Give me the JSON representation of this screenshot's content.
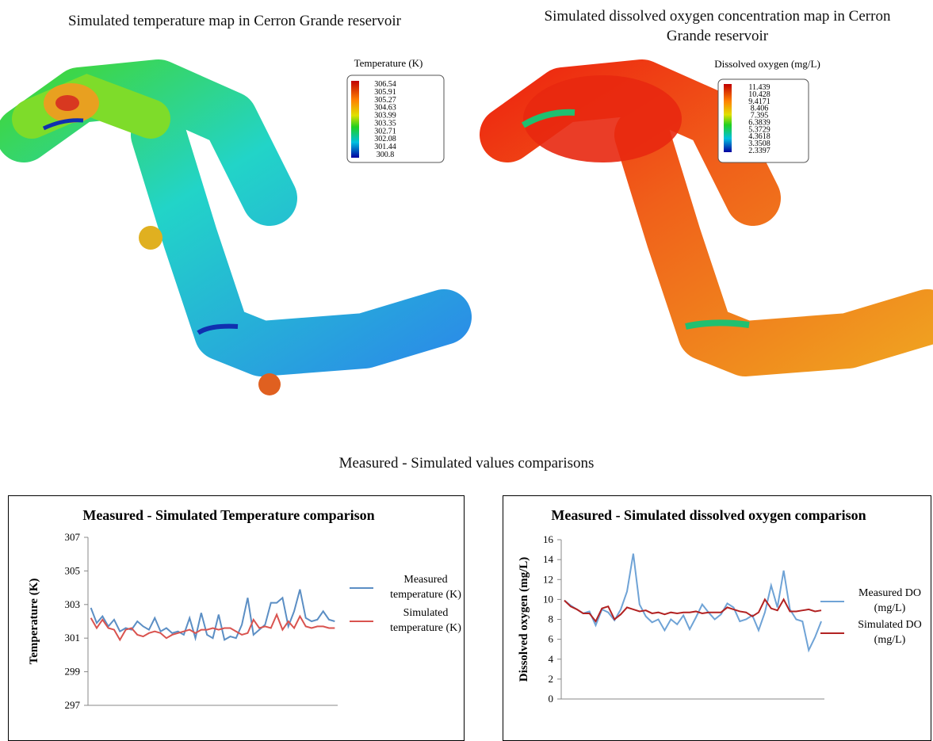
{
  "figure": {
    "temperature_map_title": "Simulated temperature map in Cerron Grande reservoir",
    "oxygen_map_title": "Simulated dissolved oxygen concentration map in Cerron Grande reservoir",
    "comparison_title": "Measured - Simulated values comparisons"
  },
  "maps": [
    {
      "legend_title": "Temperature (K)",
      "scale_labels": [
        306.54,
        305.91,
        305.27,
        304.63,
        303.99,
        303.35,
        302.71,
        302.08,
        301.44,
        300.8
      ]
    },
    {
      "legend_title": "Dissolved oxygen (mg/L)",
      "scale_labels": [
        11.439,
        10.428,
        9.4171,
        8.406,
        7.395,
        6.3839,
        5.3729,
        4.3618,
        3.3508,
        2.3397
      ]
    }
  ],
  "chart_data": [
    {
      "type": "line",
      "title": "Measured - Simulated Temperature comparison",
      "y_label": "Temperature (K)",
      "categories": [
        null,
        null,
        null,
        null,
        null,
        null,
        null,
        null,
        null,
        null,
        null,
        null,
        null,
        null,
        null,
        null,
        null,
        null,
        null,
        null,
        null,
        null,
        null,
        null,
        null,
        null,
        null,
        null,
        null,
        null,
        null,
        null,
        null,
        null,
        null,
        null,
        null,
        null,
        null,
        null,
        null,
        null,
        null
      ],
      "ylim": [
        297,
        307
      ],
      "yticks": [
        297,
        299,
        301,
        303,
        305,
        307
      ],
      "series": [
        {
          "name": "Measured temperature (K)",
          "color": "#5b8ec4",
          "values": [
            302.8,
            301.9,
            302.3,
            301.7,
            302.1,
            301.4,
            301.6,
            301.5,
            302.0,
            301.7,
            301.5,
            302.2,
            301.4,
            301.6,
            301.3,
            301.4,
            301.2,
            302.2,
            301.0,
            302.5,
            301.2,
            301.0,
            302.4,
            300.9,
            301.1,
            301.0,
            301.8,
            303.4,
            301.2,
            301.5,
            301.8,
            303.1,
            303.1,
            303.4,
            301.7,
            302.6,
            303.9,
            302.2,
            302.0,
            302.1,
            302.6,
            302.1,
            302.0
          ]
        },
        {
          "name": "Simulated temperature (K)",
          "color": "#d9534f",
          "values": [
            302.2,
            301.6,
            302.1,
            301.6,
            301.5,
            300.9,
            301.5,
            301.6,
            301.2,
            301.1,
            301.3,
            301.4,
            301.3,
            301.0,
            301.2,
            301.3,
            301.4,
            301.5,
            301.3,
            301.5,
            301.5,
            301.6,
            301.5,
            301.6,
            301.6,
            301.4,
            301.2,
            301.3,
            302.1,
            301.6,
            301.7,
            301.6,
            302.4,
            301.5,
            302.0,
            301.6,
            302.3,
            301.7,
            301.6,
            301.7,
            301.7,
            301.6,
            301.6
          ]
        }
      ]
    },
    {
      "type": "line",
      "title": "Measured - Simulated dissolved oxygen comparison",
      "y_label": "Dissolved oxygen (mg/L)",
      "categories": [
        null,
        null,
        null,
        null,
        null,
        null,
        null,
        null,
        null,
        null,
        null,
        null,
        null,
        null,
        null,
        null,
        null,
        null,
        null,
        null,
        null,
        null,
        null,
        null,
        null,
        null,
        null,
        null,
        null,
        null,
        null,
        null,
        null,
        null,
        null,
        null,
        null,
        null,
        null,
        null,
        null,
        null
      ],
      "ylim": [
        0,
        16
      ],
      "yticks": [
        0,
        2,
        4,
        6,
        8,
        10,
        12,
        14,
        16
      ],
      "series": [
        {
          "name": "Measured DO (mg/L)",
          "color": "#6fa3d6",
          "values": [
            9.9,
            9.4,
            9.0,
            8.6,
            8.8,
            7.4,
            9.0,
            8.7,
            7.9,
            9.0,
            10.8,
            14.6,
            9.5,
            8.3,
            7.7,
            8.0,
            6.9,
            8.0,
            7.5,
            8.4,
            7.0,
            8.2,
            9.5,
            8.7,
            8.0,
            8.5,
            9.6,
            9.2,
            7.8,
            8.0,
            8.4,
            6.9,
            8.7,
            11.4,
            9.2,
            12.9,
            9.0,
            8.0,
            7.8,
            4.9,
            6.2,
            7.8
          ]
        },
        {
          "name": "Simulated DO (mg/L)",
          "color": "#b22222",
          "values": [
            9.9,
            9.3,
            9.0,
            8.6,
            8.6,
            7.8,
            9.1,
            9.3,
            8.0,
            8.5,
            9.2,
            9.0,
            8.8,
            8.9,
            8.6,
            8.7,
            8.5,
            8.7,
            8.6,
            8.7,
            8.7,
            8.8,
            8.6,
            8.7,
            8.7,
            8.7,
            9.2,
            9.0,
            8.8,
            8.7,
            8.3,
            8.7,
            10.0,
            9.1,
            8.9,
            10.0,
            8.8,
            8.8,
            8.9,
            9.0,
            8.8,
            8.9
          ]
        }
      ]
    }
  ]
}
